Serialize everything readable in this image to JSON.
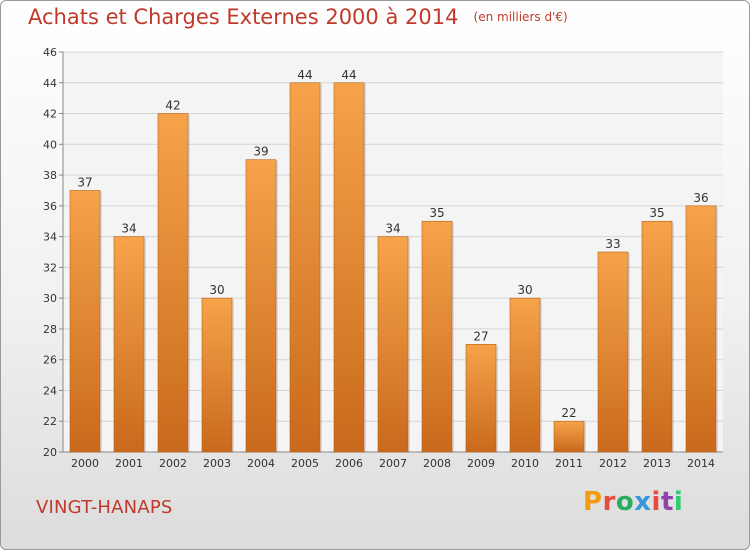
{
  "header": {
    "title": "Achats et Charges Externes 2000 à 2014",
    "subtitle": "(en milliers d'€)"
  },
  "footer": {
    "commune": "VINGT-HANAPS",
    "logo_text": "Proxiti",
    "logo_colors": [
      "#f39c12",
      "#e74c3c",
      "#27ae60",
      "#3498db",
      "#e74c3c",
      "#8e44ad",
      "#2ecc71"
    ]
  },
  "colors": {
    "bar_light": "#f6a34a",
    "bar_dark": "#c86a1c",
    "title": "#c0392b",
    "grid": "#d5d5d5",
    "axis_text": "#333333"
  },
  "chart_data": {
    "type": "bar",
    "title": "Achats et Charges Externes 2000 à 2014",
    "subtitle": "(en milliers d'€)",
    "categories": [
      "2000",
      "2001",
      "2002",
      "2003",
      "2004",
      "2005",
      "2006",
      "2007",
      "2008",
      "2009",
      "2010",
      "2011",
      "2012",
      "2013",
      "2014"
    ],
    "values": [
      37,
      34,
      42,
      30,
      39,
      44,
      44,
      34,
      35,
      27,
      30,
      22,
      33,
      35,
      36
    ],
    "ylim": [
      20,
      46
    ],
    "yticks": [
      20,
      22,
      24,
      26,
      28,
      30,
      32,
      34,
      36,
      38,
      40,
      42,
      44,
      46
    ],
    "grid": true,
    "data_labels": true
  }
}
